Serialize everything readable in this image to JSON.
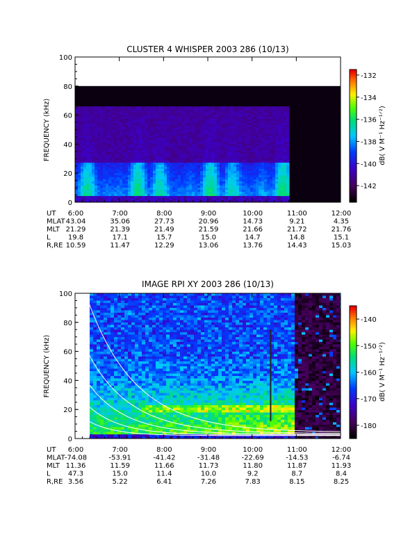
{
  "chart_data": [
    {
      "type": "heatmap",
      "title": "CLUSTER 4 WHISPER 2003 286 (10/13)",
      "ylabel": "FREQUENCY (kHz)",
      "ylim": [
        0,
        100
      ],
      "yticks": [
        "0",
        "20",
        "40",
        "60",
        "80",
        "100"
      ],
      "xticks": [
        "6:00",
        "7:00",
        "8:00",
        "9:00",
        "10:00",
        "11:00",
        "12:00"
      ],
      "x_range_hours": [
        6,
        12
      ],
      "data_end_hour": 10.83,
      "upper_band_khz": [
        66,
        80
      ],
      "colorbar": {
        "label": "dB( V M⁻¹ Hz⁻¹ᐟ²)",
        "range": [
          -143.5,
          -131.5
        ],
        "ticks": [
          "-132",
          "-134",
          "-136",
          "-138",
          "-140",
          "-142"
        ]
      },
      "ephemeris": {
        "labels": [
          "UT",
          "MLAT",
          "MLT",
          "L",
          "R,RE"
        ],
        "rows": [
          [
            "6:00",
            "7:00",
            "8:00",
            "9:00",
            "10:00",
            "11:00",
            "12:00"
          ],
          [
            "43.04",
            "35.06",
            "27.73",
            "20.96",
            "14.73",
            "9.21",
            "4.35"
          ],
          [
            "21.29",
            "21.39",
            "21.49",
            "21.59",
            "21.66",
            "21.72",
            "21.76"
          ],
          [
            "19.8",
            "17.1",
            "15.7",
            "15.0",
            "14.7",
            "14.8",
            "15.1"
          ],
          [
            "10.59",
            "11.47",
            "12.29",
            "13.06",
            "13.76",
            "14.43",
            "15.03"
          ]
        ]
      }
    },
    {
      "type": "heatmap",
      "title": "IMAGE RPI XY 2003 286 (10/13)",
      "ylabel": "FREQUENCY (kHz)",
      "ylim": [
        0,
        100
      ],
      "yticks": [
        "0",
        "20",
        "40",
        "60",
        "80",
        "100"
      ],
      "xticks": [
        "6:00",
        "7:00",
        "8:00",
        "9:00",
        "10:00",
        "11:00",
        "12:00"
      ],
      "x_range_hours": [
        6,
        12
      ],
      "data_start_hour": 6.33,
      "dark_after_hour": 10.9,
      "colorbar": {
        "label": "dB( V M⁻¹ Hz⁻¹ᐟ²)",
        "range": [
          -185,
          -135
        ],
        "ticks": [
          "-140",
          "-150",
          "-160",
          "-170",
          "-180"
        ]
      },
      "ephemeris": {
        "labels": [
          "UT",
          "MLAT",
          "MLT",
          "L",
          "R,RE"
        ],
        "rows": [
          [
            "6:00",
            "7:00",
            "8:00",
            "9:00",
            "10:00",
            "11:00",
            "12:00"
          ],
          [
            "-74.08",
            "-53.91",
            "-41.42",
            "-31.48",
            "-22.69",
            "-14.53",
            "-6.74"
          ],
          [
            "11.36",
            "11.59",
            "11.66",
            "11.73",
            "11.80",
            "11.87",
            "11.93"
          ],
          [
            "47.3",
            "15.0",
            "11.4",
            "10.0",
            "9.2",
            "8.7",
            "8.4"
          ],
          [
            "3.56",
            "5.22",
            "6.41",
            "7.26",
            "7.83",
            "8.15",
            "8.25"
          ]
        ]
      }
    }
  ]
}
